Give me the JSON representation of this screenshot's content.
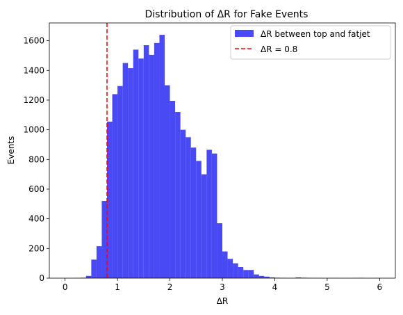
{
  "chart_data": {
    "type": "bar",
    "title": "Distribution of ΔR for Fake Events",
    "xlabel": "ΔR",
    "ylabel": "Events",
    "xlim": [
      -0.3,
      6.3
    ],
    "ylim": [
      0,
      1720
    ],
    "xticks": [
      0,
      1,
      2,
      3,
      4,
      5,
      6
    ],
    "xtick_labels": [
      "0",
      "1",
      "2",
      "3",
      "4",
      "5",
      "6"
    ],
    "yticks": [
      0,
      200,
      400,
      600,
      800,
      1000,
      1200,
      1400,
      1600
    ],
    "ytick_labels": [
      "0",
      "200",
      "400",
      "600",
      "800",
      "1000",
      "1200",
      "1400",
      "1600"
    ],
    "grid": false,
    "legend_position": "top-right",
    "bin_width": 0.1,
    "series": [
      {
        "name": "ΔR between top and fatjet",
        "color": "#4a4af5",
        "bin_starts": [
          0.2,
          0.3,
          0.4,
          0.5,
          0.6,
          0.7,
          0.8,
          0.9,
          1.0,
          1.1,
          1.2,
          1.3,
          1.4,
          1.5,
          1.6,
          1.7,
          1.8,
          1.9,
          2.0,
          2.1,
          2.2,
          2.3,
          2.4,
          2.5,
          2.6,
          2.7,
          2.8,
          2.9,
          3.0,
          3.1,
          3.2,
          3.3,
          3.4,
          3.5,
          3.6,
          3.7,
          3.8,
          3.9,
          4.0,
          4.1,
          4.2,
          4.3,
          4.4,
          4.5,
          4.6,
          4.7,
          4.8,
          4.9,
          5.0,
          5.1,
          5.2,
          5.3,
          5.4,
          5.5,
          5.6,
          5.7,
          5.8,
          5.9
        ],
        "values": [
          1,
          3,
          15,
          125,
          215,
          520,
          1055,
          1240,
          1295,
          1450,
          1415,
          1540,
          1480,
          1570,
          1505,
          1585,
          1640,
          1300,
          1195,
          1120,
          1000,
          950,
          880,
          790,
          700,
          865,
          840,
          370,
          180,
          130,
          100,
          75,
          55,
          55,
          25,
          15,
          10,
          5,
          3,
          2,
          1,
          1,
          5,
          3,
          2,
          1,
          1,
          0,
          1,
          1,
          0,
          0,
          0,
          1,
          2,
          0,
          0,
          1
        ]
      },
      {
        "name": "ΔR = 0.8",
        "color": "#ff0000",
        "x": 0.8,
        "style": "dashed"
      }
    ]
  }
}
